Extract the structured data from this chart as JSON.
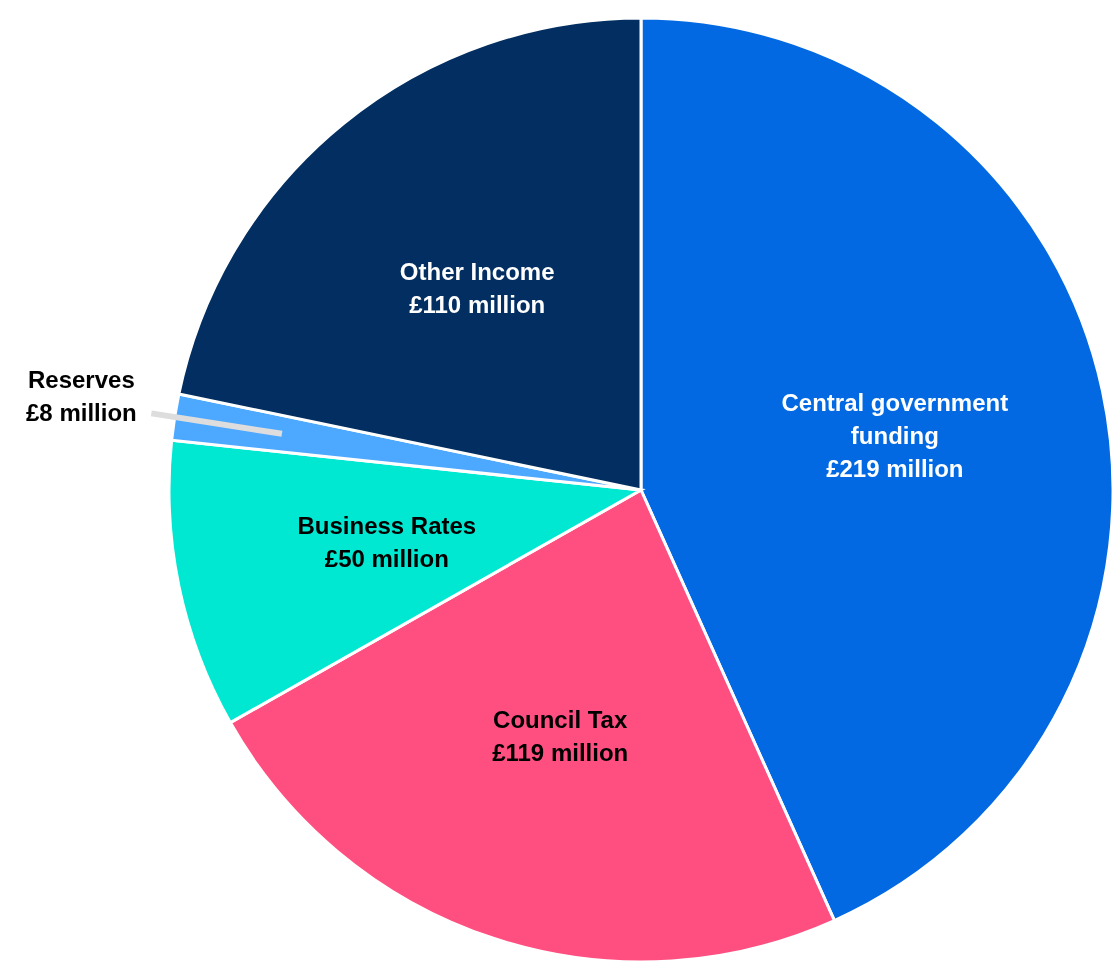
{
  "chart_data": {
    "type": "pie",
    "categories": [
      "Central government funding",
      "Council Tax",
      "Business Rates",
      "Reserves",
      "Other Income"
    ],
    "values": [
      219,
      119,
      50,
      8,
      110
    ],
    "colors": [
      "#0369e3",
      "#ff4f81",
      "#00e8d1",
      "#4da8ff",
      "#022e61"
    ],
    "value_labels": [
      "£219 million",
      "£119 million",
      "£50 million",
      "£8 million",
      "£110 million"
    ]
  }
}
